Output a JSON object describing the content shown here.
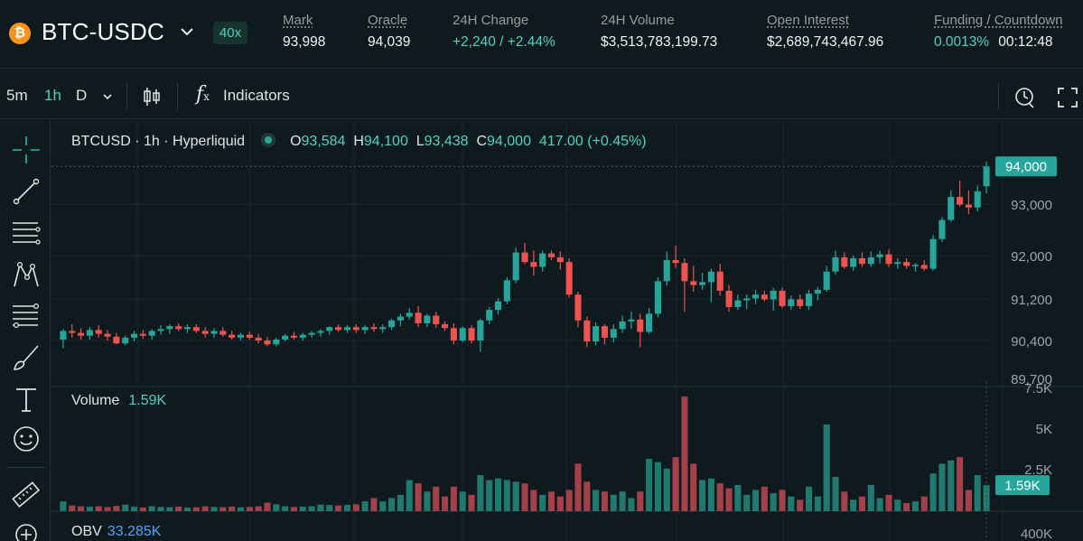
{
  "header": {
    "coin_symbol": "₿",
    "pair": "BTC-USDC",
    "leverage": "40x",
    "stats": [
      {
        "label": "Mark",
        "value": "93,998"
      },
      {
        "label": "Oracle",
        "value": "94,039"
      },
      {
        "label": "24H Change",
        "value": "+2,240 / +2.44%"
      },
      {
        "label": "24H Volume",
        "value": "$3,513,783,199.73"
      },
      {
        "label": "Open Interest",
        "value": "$2,689,743,467.96"
      },
      {
        "label": "Funding / Countdown",
        "value": "0.0013%",
        "countdown": "00:12:48"
      }
    ]
  },
  "toolbar": {
    "intervals": [
      "5m",
      "1h",
      "D"
    ],
    "active_interval": "1h",
    "indicators_label": "Indicators",
    "fx_label": "f",
    "fx_sub": "x"
  },
  "chart_legend": {
    "symbol_line": "BTCUSD · 1h · Hyperliquid",
    "o_key": "O",
    "o_val": "93,584",
    "h_key": "H",
    "h_val": "94,100",
    "l_key": "L",
    "l_val": "93,438",
    "c_key": "C",
    "c_val": "94,000",
    "change": "417.00 (+0.45%)"
  },
  "volume_legend": {
    "label": "Volume",
    "value": "1.59K"
  },
  "obv_legend": {
    "label": "OBV",
    "value": "33.285K"
  },
  "price_axis": {
    "ticks": [
      "93,000",
      "92,000",
      "91,200",
      "90,400",
      "89,700"
    ],
    "last_price": "94,000"
  },
  "volume_axis": {
    "ticks": [
      "7.5K",
      "5K",
      "2.5K"
    ],
    "last_volume": "1.59K"
  },
  "obv_axis": {
    "ticks": [
      "400K"
    ]
  },
  "colors": {
    "up": "#26a69a",
    "down": "#ef5350",
    "up_volume": "#1f7a6f",
    "down_volume": "#a3404a",
    "accent": "#50d2c1",
    "background": "#0f1a1f"
  },
  "chart_data": {
    "type": "candlestick",
    "interval": "1h",
    "y_range": [
      89700,
      94400
    ],
    "volume_range": [
      0,
      7500
    ],
    "candles": [
      {
        "o": 90380,
        "h": 90600,
        "l": 90200,
        "c": 90560,
        "v": 600
      },
      {
        "o": 90560,
        "h": 90700,
        "l": 90420,
        "c": 90520,
        "v": 350
      },
      {
        "o": 90520,
        "h": 90620,
        "l": 90380,
        "c": 90460,
        "v": 300
      },
      {
        "o": 90460,
        "h": 90640,
        "l": 90380,
        "c": 90580,
        "v": 280
      },
      {
        "o": 90580,
        "h": 90680,
        "l": 90420,
        "c": 90500,
        "v": 300
      },
      {
        "o": 90500,
        "h": 90580,
        "l": 90360,
        "c": 90440,
        "v": 250
      },
      {
        "o": 90440,
        "h": 90520,
        "l": 90280,
        "c": 90300,
        "v": 320
      },
      {
        "o": 90300,
        "h": 90460,
        "l": 90260,
        "c": 90420,
        "v": 400
      },
      {
        "o": 90420,
        "h": 90560,
        "l": 90340,
        "c": 90500,
        "v": 280
      },
      {
        "o": 90500,
        "h": 90580,
        "l": 90400,
        "c": 90460,
        "v": 230
      },
      {
        "o": 90460,
        "h": 90600,
        "l": 90380,
        "c": 90560,
        "v": 300
      },
      {
        "o": 90560,
        "h": 90680,
        "l": 90480,
        "c": 90600,
        "v": 260
      },
      {
        "o": 90600,
        "h": 90700,
        "l": 90500,
        "c": 90660,
        "v": 240
      },
      {
        "o": 90660,
        "h": 90720,
        "l": 90560,
        "c": 90600,
        "v": 280
      },
      {
        "o": 90600,
        "h": 90700,
        "l": 90520,
        "c": 90640,
        "v": 220
      },
      {
        "o": 90640,
        "h": 90700,
        "l": 90520,
        "c": 90560,
        "v": 240
      },
      {
        "o": 90560,
        "h": 90640,
        "l": 90420,
        "c": 90500,
        "v": 300
      },
      {
        "o": 90500,
        "h": 90620,
        "l": 90420,
        "c": 90560,
        "v": 260
      },
      {
        "o": 90560,
        "h": 90640,
        "l": 90440,
        "c": 90480,
        "v": 250
      },
      {
        "o": 90480,
        "h": 90560,
        "l": 90380,
        "c": 90420,
        "v": 280
      },
      {
        "o": 90420,
        "h": 90520,
        "l": 90360,
        "c": 90480,
        "v": 240
      },
      {
        "o": 90480,
        "h": 90540,
        "l": 90380,
        "c": 90420,
        "v": 260
      },
      {
        "o": 90420,
        "h": 90500,
        "l": 90300,
        "c": 90360,
        "v": 300
      },
      {
        "o": 90360,
        "h": 90440,
        "l": 90240,
        "c": 90280,
        "v": 520
      },
      {
        "o": 90280,
        "h": 90420,
        "l": 90240,
        "c": 90380,
        "v": 420
      },
      {
        "o": 90380,
        "h": 90500,
        "l": 90340,
        "c": 90460,
        "v": 300
      },
      {
        "o": 90460,
        "h": 90540,
        "l": 90380,
        "c": 90420,
        "v": 260
      },
      {
        "o": 90420,
        "h": 90520,
        "l": 90360,
        "c": 90480,
        "v": 280
      },
      {
        "o": 90480,
        "h": 90560,
        "l": 90420,
        "c": 90520,
        "v": 300
      },
      {
        "o": 90520,
        "h": 90600,
        "l": 90440,
        "c": 90560,
        "v": 400
      },
      {
        "o": 90560,
        "h": 90660,
        "l": 90480,
        "c": 90640,
        "v": 380
      },
      {
        "o": 90640,
        "h": 90700,
        "l": 90540,
        "c": 90580,
        "v": 350
      },
      {
        "o": 90580,
        "h": 90680,
        "l": 90520,
        "c": 90640,
        "v": 380
      },
      {
        "o": 90640,
        "h": 90700,
        "l": 90520,
        "c": 90580,
        "v": 420
      },
      {
        "o": 90580,
        "h": 90680,
        "l": 90500,
        "c": 90640,
        "v": 600
      },
      {
        "o": 90640,
        "h": 90720,
        "l": 90540,
        "c": 90600,
        "v": 800
      },
      {
        "o": 90600,
        "h": 90700,
        "l": 90520,
        "c": 90640,
        "v": 600
      },
      {
        "o": 90640,
        "h": 90820,
        "l": 90580,
        "c": 90780,
        "v": 800
      },
      {
        "o": 90780,
        "h": 90920,
        "l": 90660,
        "c": 90860,
        "v": 1000
      },
      {
        "o": 90860,
        "h": 91040,
        "l": 90800,
        "c": 90940,
        "v": 1900
      },
      {
        "o": 90940,
        "h": 91080,
        "l": 90640,
        "c": 90720,
        "v": 1700
      },
      {
        "o": 90720,
        "h": 90920,
        "l": 90640,
        "c": 90880,
        "v": 1200
      },
      {
        "o": 90880,
        "h": 90960,
        "l": 90620,
        "c": 90700,
        "v": 1500
      },
      {
        "o": 90700,
        "h": 90760,
        "l": 90560,
        "c": 90620,
        "v": 900
      },
      {
        "o": 90620,
        "h": 90720,
        "l": 90280,
        "c": 90360,
        "v": 1500
      },
      {
        "o": 90360,
        "h": 90660,
        "l": 90320,
        "c": 90620,
        "v": 1200
      },
      {
        "o": 90620,
        "h": 90680,
        "l": 90300,
        "c": 90360,
        "v": 1000
      },
      {
        "o": 90360,
        "h": 90820,
        "l": 90120,
        "c": 90780,
        "v": 2200
      },
      {
        "o": 90780,
        "h": 91060,
        "l": 90700,
        "c": 91000,
        "v": 1900
      },
      {
        "o": 91000,
        "h": 91240,
        "l": 90900,
        "c": 91180,
        "v": 2000
      },
      {
        "o": 91180,
        "h": 91680,
        "l": 91120,
        "c": 91620,
        "v": 1900
      },
      {
        "o": 91620,
        "h": 92300,
        "l": 91560,
        "c": 92200,
        "v": 1800
      },
      {
        "o": 92200,
        "h": 92400,
        "l": 91960,
        "c": 92000,
        "v": 1700
      },
      {
        "o": 92000,
        "h": 92240,
        "l": 91720,
        "c": 91900,
        "v": 1300
      },
      {
        "o": 91900,
        "h": 92240,
        "l": 91800,
        "c": 92180,
        "v": 1000
      },
      {
        "o": 92180,
        "h": 92240,
        "l": 92040,
        "c": 92100,
        "v": 1200
      },
      {
        "o": 92100,
        "h": 92220,
        "l": 91840,
        "c": 92000,
        "v": 900
      },
      {
        "o": 92000,
        "h": 92080,
        "l": 91260,
        "c": 91320,
        "v": 1300
      },
      {
        "o": 91320,
        "h": 91380,
        "l": 90640,
        "c": 90780,
        "v": 2900
      },
      {
        "o": 90780,
        "h": 90860,
        "l": 90220,
        "c": 90340,
        "v": 1800
      },
      {
        "o": 90340,
        "h": 90740,
        "l": 90260,
        "c": 90660,
        "v": 1300
      },
      {
        "o": 90660,
        "h": 90700,
        "l": 90280,
        "c": 90420,
        "v": 1200
      },
      {
        "o": 90420,
        "h": 90700,
        "l": 90320,
        "c": 90600,
        "v": 1000
      },
      {
        "o": 90600,
        "h": 90880,
        "l": 90520,
        "c": 90760,
        "v": 1200
      },
      {
        "o": 90760,
        "h": 90960,
        "l": 90600,
        "c": 90800,
        "v": 800
      },
      {
        "o": 90800,
        "h": 90920,
        "l": 90220,
        "c": 90540,
        "v": 1200
      },
      {
        "o": 90540,
        "h": 91040,
        "l": 90500,
        "c": 90920,
        "v": 3200
      },
      {
        "o": 90920,
        "h": 91680,
        "l": 90840,
        "c": 91600,
        "v": 3000
      },
      {
        "o": 91600,
        "h": 92220,
        "l": 91500,
        "c": 92040,
        "v": 2600
      },
      {
        "o": 92040,
        "h": 92340,
        "l": 91880,
        "c": 91980,
        "v": 3300
      },
      {
        "o": 91980,
        "h": 92080,
        "l": 90960,
        "c": 91600,
        "v": 7000
      },
      {
        "o": 91600,
        "h": 91920,
        "l": 91380,
        "c": 91520,
        "v": 2900
      },
      {
        "o": 91520,
        "h": 91780,
        "l": 91420,
        "c": 91580,
        "v": 1900
      },
      {
        "o": 91580,
        "h": 91860,
        "l": 91160,
        "c": 91800,
        "v": 2000
      },
      {
        "o": 91800,
        "h": 91960,
        "l": 91300,
        "c": 91400,
        "v": 1700
      },
      {
        "o": 91400,
        "h": 91520,
        "l": 90960,
        "c": 91060,
        "v": 1400
      },
      {
        "o": 91060,
        "h": 91320,
        "l": 91000,
        "c": 91200,
        "v": 1600
      },
      {
        "o": 91200,
        "h": 91320,
        "l": 91020,
        "c": 91240,
        "v": 1000
      },
      {
        "o": 91240,
        "h": 91420,
        "l": 91120,
        "c": 91320,
        "v": 1300
      },
      {
        "o": 91320,
        "h": 91400,
        "l": 91180,
        "c": 91220,
        "v": 1500
      },
      {
        "o": 91220,
        "h": 91460,
        "l": 90980,
        "c": 91400,
        "v": 1100
      },
      {
        "o": 91400,
        "h": 91460,
        "l": 91040,
        "c": 91080,
        "v": 1300
      },
      {
        "o": 91080,
        "h": 91300,
        "l": 91000,
        "c": 91220,
        "v": 900
      },
      {
        "o": 91220,
        "h": 91320,
        "l": 91020,
        "c": 91080,
        "v": 700
      },
      {
        "o": 91080,
        "h": 91420,
        "l": 91000,
        "c": 91340,
        "v": 1500
      },
      {
        "o": 91340,
        "h": 91480,
        "l": 91200,
        "c": 91420,
        "v": 900
      },
      {
        "o": 91420,
        "h": 91920,
        "l": 91380,
        "c": 91800,
        "v": 5300
      },
      {
        "o": 91800,
        "h": 92240,
        "l": 91740,
        "c": 92100,
        "v": 2100
      },
      {
        "o": 92100,
        "h": 92200,
        "l": 91860,
        "c": 91900,
        "v": 1200
      },
      {
        "o": 91900,
        "h": 92140,
        "l": 91820,
        "c": 92080,
        "v": 700
      },
      {
        "o": 92080,
        "h": 92200,
        "l": 91900,
        "c": 91960,
        "v": 900
      },
      {
        "o": 91960,
        "h": 92220,
        "l": 91900,
        "c": 92100,
        "v": 1600
      },
      {
        "o": 92100,
        "h": 92240,
        "l": 91960,
        "c": 92160,
        "v": 800
      },
      {
        "o": 92160,
        "h": 92260,
        "l": 91900,
        "c": 91960,
        "v": 1000
      },
      {
        "o": 91960,
        "h": 92080,
        "l": 91860,
        "c": 92000,
        "v": 700
      },
      {
        "o": 92000,
        "h": 92080,
        "l": 91860,
        "c": 91920,
        "v": 500
      },
      {
        "o": 91920,
        "h": 91980,
        "l": 91800,
        "c": 91940,
        "v": 600
      },
      {
        "o": 91940,
        "h": 92040,
        "l": 91820,
        "c": 91860,
        "v": 900
      },
      {
        "o": 91860,
        "h": 92560,
        "l": 91820,
        "c": 92480,
        "v": 2300
      },
      {
        "o": 92480,
        "h": 92940,
        "l": 92420,
        "c": 92880,
        "v": 2900
      },
      {
        "o": 92880,
        "h": 93500,
        "l": 92840,
        "c": 93360,
        "v": 3100
      },
      {
        "o": 93360,
        "h": 93700,
        "l": 93160,
        "c": 93200,
        "v": 3300
      },
      {
        "o": 93200,
        "h": 93500,
        "l": 93000,
        "c": 93140,
        "v": 1300
      },
      {
        "o": 93140,
        "h": 93600,
        "l": 93060,
        "c": 93480,
        "v": 2200
      },
      {
        "o": 93584,
        "h": 94100,
        "l": 93438,
        "c": 94000,
        "v": 1590
      }
    ]
  }
}
